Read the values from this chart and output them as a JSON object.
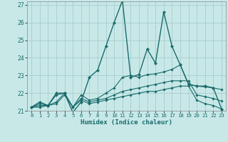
{
  "xlabel": "Humidex (Indice chaleur)",
  "bg_color": "#c8e8e8",
  "grid_color": "#a8cccc",
  "line_color": "#1a6b6b",
  "xlim": [
    -0.5,
    23.5
  ],
  "ylim": [
    21.0,
    27.2
  ],
  "yticks": [
    21,
    22,
    23,
    24,
    25,
    26,
    27
  ],
  "xticks": [
    0,
    1,
    2,
    3,
    4,
    5,
    6,
    7,
    8,
    9,
    10,
    11,
    12,
    13,
    14,
    15,
    16,
    17,
    18,
    19,
    20,
    21,
    22,
    23
  ],
  "series": [
    [
      21.2,
      21.5,
      21.3,
      22.0,
      22.0,
      20.9,
      21.5,
      22.9,
      23.3,
      24.65,
      26.0,
      27.25,
      22.9,
      23.05,
      24.5,
      23.7,
      26.6,
      24.65,
      23.6,
      22.5,
      22.4,
      22.4,
      22.3,
      21.1
    ],
    [
      21.2,
      21.4,
      21.3,
      21.9,
      22.0,
      21.2,
      21.9,
      21.6,
      21.7,
      22.0,
      22.3,
      22.9,
      23.0,
      22.9,
      23.05,
      23.1,
      23.2,
      23.35,
      23.6,
      22.5,
      22.4,
      22.35,
      22.3,
      22.2
    ],
    [
      21.2,
      21.3,
      21.3,
      21.5,
      22.0,
      21.2,
      21.7,
      21.5,
      21.6,
      21.7,
      21.9,
      22.1,
      22.2,
      22.3,
      22.4,
      22.5,
      22.6,
      22.7,
      22.7,
      22.7,
      21.9,
      21.8,
      21.7,
      21.55
    ],
    [
      21.2,
      21.2,
      21.3,
      21.4,
      21.9,
      21.2,
      21.6,
      21.4,
      21.5,
      21.6,
      21.7,
      21.8,
      21.9,
      22.0,
      22.1,
      22.1,
      22.2,
      22.3,
      22.4,
      22.4,
      21.6,
      21.4,
      21.3,
      21.1
    ]
  ]
}
